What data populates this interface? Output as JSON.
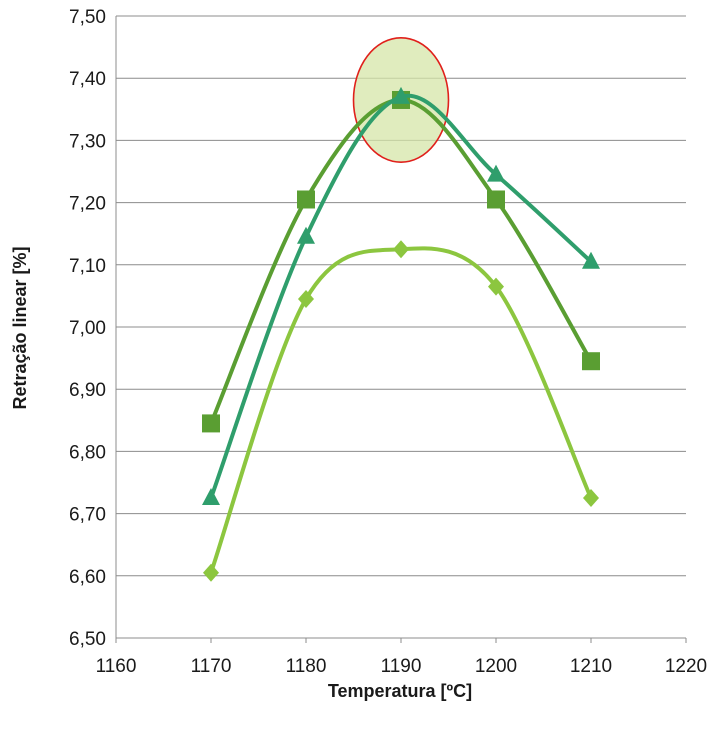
{
  "chart_data": {
    "type": "line",
    "title": "",
    "xlabel": "Temperatura [ºC]",
    "ylabel": "Retração linear [%]",
    "xlim": [
      1160,
      1220
    ],
    "ylim": [
      6.5,
      7.5
    ],
    "x_ticks": [
      "1160",
      "1170",
      "1180",
      "1190",
      "1200",
      "1210",
      "1220"
    ],
    "y_ticks": [
      "6,50",
      "6,60",
      "6,70",
      "6,80",
      "6,90",
      "7,00",
      "7,10",
      "7,20",
      "7,30",
      "7,40",
      "7,50"
    ],
    "grid": "horizontal",
    "legend": "none",
    "smooth": true,
    "series": [
      {
        "marker": "square",
        "color": "#5a9e32",
        "x": [
          1170,
          1180,
          1190,
          1200,
          1210
        ],
        "y": [
          6.845,
          7.205,
          7.365,
          7.205,
          6.945
        ]
      },
      {
        "marker": "triangle",
        "color": "#2f9e6c",
        "x": [
          1170,
          1180,
          1190,
          1200,
          1210
        ],
        "y": [
          6.725,
          7.145,
          7.37,
          7.245,
          7.105
        ]
      },
      {
        "marker": "diamond",
        "color": "#8cc63f",
        "x": [
          1170,
          1180,
          1190,
          1200,
          1210
        ],
        "y": [
          6.605,
          7.045,
          7.125,
          7.065,
          6.725
        ]
      }
    ],
    "annotations": [
      {
        "type": "ellipse-highlight",
        "cx": 1190,
        "cy": 7.365,
        "rx": 5,
        "ry": 0.1,
        "stroke": "#e0201b",
        "fill": "#d6e6a8"
      }
    ]
  }
}
